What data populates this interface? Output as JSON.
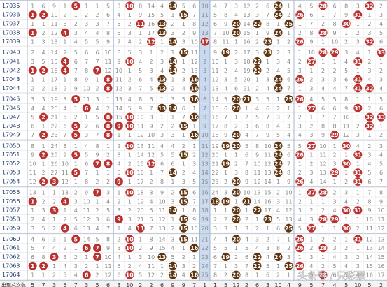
{
  "periods": [
    "17035",
    "17036",
    "17037",
    "17038",
    "17039",
    "17040",
    "17041",
    "17042",
    "17043",
    "17044",
    "17045",
    "17046",
    "17047",
    "17048",
    "17049",
    "17050",
    "17051",
    "17052",
    "17053",
    "17054",
    "17055",
    "17056",
    "17057",
    "17058",
    "17059",
    "17060",
    "17061",
    "17062",
    "17063",
    "17064"
  ],
  "columns": [
    {
      "number": 1,
      "color": "#b8312f",
      "missing": [
        1,
        null,
        1,
        null,
        1,
        2,
        3,
        null,
        1,
        2,
        3,
        4,
        5,
        6,
        7,
        8,
        9,
        10,
        11,
        12,
        13,
        null,
        1,
        2,
        3,
        4,
        5,
        6,
        null,
        1
      ]
    },
    {
      "number": 2,
      "color": "#b8312f",
      "missing": [
        6,
        null,
        1,
        2,
        3,
        4,
        5,
        null,
        1,
        2,
        3,
        4,
        null,
        1,
        null,
        1,
        null,
        1,
        2,
        null,
        1,
        2,
        3,
        4,
        5,
        6,
        7,
        8,
        null,
        1
      ]
    },
    {
      "number": 3,
      "color": "#b8312f",
      "missing": [
        9,
        10,
        11,
        12,
        13,
        14,
        15,
        16,
        17,
        18,
        19,
        20,
        21,
        22,
        23,
        24,
        25,
        26,
        27,
        null,
        1,
        2,
        null,
        1,
        2,
        3,
        4,
        null,
        1,
        2
      ]
    },
    {
      "number": 4,
      "color": "#b8312f",
      "missing": [
        1,
        2,
        3,
        null,
        1,
        2,
        null,
        null,
        1,
        2,
        3,
        4,
        5,
        6,
        7,
        8,
        9,
        10,
        11,
        12,
        13,
        null,
        1,
        2,
        null,
        1,
        2,
        3,
        4,
        5
      ]
    },
    {
      "number": 5,
      "color": "#b8312f",
      "missing": [
        null,
        1,
        2,
        3,
        4,
        5,
        6,
        7,
        8,
        9,
        null,
        1,
        2,
        null,
        null,
        1,
        null,
        1,
        null,
        1,
        2,
        3,
        4,
        5,
        6,
        null,
        1,
        2,
        3,
        4
      ]
    },
    {
      "number": 6,
      "color": "#b8312f",
      "missing": [
        1,
        2,
        3,
        4,
        5,
        6,
        7,
        8,
        9,
        10,
        11,
        null,
        1,
        2,
        3,
        4,
        5,
        6,
        7,
        8,
        9,
        10,
        11,
        12,
        13,
        14,
        null,
        1,
        2,
        null
      ]
    },
    {
      "number": 7,
      "color": "#b8312f",
      "missing": [
        1,
        2,
        3,
        4,
        5,
        6,
        7,
        null,
        1,
        2,
        3,
        4,
        5,
        6,
        7,
        8,
        9,
        null,
        1,
        2,
        null,
        1,
        2,
        3,
        4,
        5,
        null,
        null,
        1,
        2
      ]
    },
    {
      "number": 8,
      "color": "#b8312f",
      "missing": [
        5,
        6,
        7,
        8,
        9,
        10,
        11,
        12,
        null,
        null,
        1,
        2,
        null,
        null,
        null,
        1,
        2,
        null,
        1,
        2,
        3,
        4,
        5,
        6,
        7,
        8,
        9,
        10,
        11,
        12
      ]
    },
    {
      "number": 9,
      "color": "#b8312f",
      "missing": [
        3,
        4,
        5,
        6,
        7,
        8,
        9,
        10,
        11,
        12,
        13,
        14,
        15,
        null,
        1,
        2,
        3,
        4,
        5,
        null,
        1,
        2,
        3,
        null,
        1,
        2,
        3,
        4,
        5,
        6
      ]
    },
    {
      "number": 10,
      "color": "#b8312f",
      "missing": [
        null,
        1,
        2,
        3,
        4,
        5,
        null,
        1,
        2,
        3,
        4,
        5,
        null,
        null,
        1,
        null,
        1,
        2,
        null,
        1,
        null,
        1,
        2,
        3,
        4,
        null,
        null,
        1,
        2,
        null
      ]
    },
    {
      "number": 11,
      "color": "#b8312f",
      "missing": [
        8,
        9,
        null,
        1,
        2,
        3,
        4,
        5,
        6,
        7,
        8,
        9,
        10,
        11,
        12,
        13,
        14,
        15,
        16,
        17,
        18,
        19,
        20,
        21,
        null,
        1,
        2,
        3,
        4,
        5
      ]
    },
    {
      "number": 12,
      "color": "#b8312f",
      "missing": [
        14,
        15,
        16,
        17,
        null,
        1,
        2,
        3,
        4,
        5,
        6,
        7,
        8,
        9,
        10,
        11,
        12,
        null,
        1,
        2,
        3,
        4,
        5,
        6,
        7,
        8,
        9,
        10,
        11,
        12
      ]
    },
    {
      "number": 13,
      "color": "#5e3410",
      "missing": [
        4,
        5,
        null,
        null,
        1,
        2,
        3,
        4,
        null,
        null,
        1,
        null,
        1,
        2,
        3,
        4,
        5,
        6,
        7,
        8,
        9,
        10,
        11,
        12,
        13,
        14,
        15,
        null,
        1,
        2
      ]
    },
    {
      "number": 14,
      "color": "#5e3410",
      "missing": [
        null,
        1,
        2,
        3,
        null,
        1,
        null,
        null,
        1,
        2,
        3,
        null,
        1,
        2,
        3,
        4,
        5,
        6,
        null,
        1,
        2,
        3,
        null,
        1,
        2,
        3,
        4,
        5,
        null,
        null
      ]
    },
    {
      "number": 15,
      "color": "#5e3410",
      "missing": [
        5,
        null,
        1,
        2,
        3,
        null,
        1,
        2,
        3,
        4,
        5,
        6,
        7,
        null,
        1,
        2,
        null,
        1,
        2,
        3,
        null,
        null,
        1,
        null,
        null,
        null,
        1,
        2,
        3,
        4
      ]
    },
    {
      "number": 16,
      "color": "#5e3410",
      "missing": [
        6,
        7,
        8,
        9,
        10,
        11,
        12,
        13,
        null,
        null,
        null,
        1,
        null,
        1,
        null,
        1,
        2,
        3,
        4,
        5,
        6,
        7,
        8,
        9,
        10,
        11,
        null,
        1,
        2,
        null
      ]
    },
    {
      "number": 17,
      "color": "#b8312f",
      "missing": [
        10,
        11,
        12,
        13,
        null,
        1,
        2,
        3,
        4,
        5,
        6,
        7,
        8,
        9,
        10,
        11,
        12,
        13,
        14,
        15,
        16,
        17,
        18,
        19,
        20,
        21,
        22,
        23,
        24,
        25
      ]
    },
    {
      "number": 18,
      "color": "#5e3410",
      "missing": [
        4,
        5,
        6,
        7,
        8,
        9,
        10,
        11,
        12,
        13,
        14,
        15,
        16,
        17,
        18,
        19,
        20,
        21,
        22,
        23,
        24,
        null,
        1,
        2,
        3,
        4,
        5,
        6,
        7,
        8
      ]
    },
    {
      "number": 19,
      "color": "#5e3410",
      "missing": [
        7,
        8,
        9,
        10,
        11,
        null,
        1,
        2,
        3,
        4,
        5,
        6,
        7,
        8,
        9,
        null,
        1,
        null,
        1,
        2,
        3,
        null,
        1,
        2,
        3,
        4,
        5,
        null,
        1,
        2
      ]
    },
    {
      "number": 20,
      "color": "#5e3410",
      "missing": [
        3,
        4,
        null,
        null,
        1,
        2,
        3,
        4,
        5,
        6,
        null,
        null,
        1,
        2,
        null,
        null,
        1,
        2,
        3,
        null,
        null,
        1,
        null,
        null,
        1,
        null,
        1,
        2,
        3,
        null
      ]
    },
    {
      "number": 21,
      "color": "#5e3410",
      "missing": [
        12,
        13,
        14,
        15,
        16,
        17,
        18,
        19,
        20,
        21,
        null,
        1,
        2,
        3,
        4,
        5,
        6,
        7,
        8,
        9,
        10,
        null,
        1,
        2,
        3,
        4,
        5,
        6,
        7,
        8
      ]
    },
    {
      "number": 22,
      "color": "#5e3410",
      "missing": [
        2,
        3,
        null,
        1,
        2,
        3,
        null,
        null,
        1,
        2,
        3,
        4,
        5,
        6,
        7,
        8,
        9,
        10,
        11,
        12,
        13,
        14,
        null,
        1,
        2,
        3,
        4,
        null,
        null,
        1
      ]
    },
    {
      "number": 23,
      "color": "#5e3410",
      "missing": [
        6,
        7,
        8,
        9,
        null,
        null,
        1,
        2,
        3,
        4,
        5,
        6,
        7,
        8,
        9,
        10,
        11,
        12,
        13,
        14,
        15,
        16,
        17,
        null,
        1,
        2,
        3,
        4,
        5,
        6
      ]
    },
    {
      "number": 24,
      "color": "#5e3410",
      "missing": [
        null,
        null,
        1,
        null,
        1,
        2,
        3,
        4,
        null,
        null,
        1,
        2,
        3,
        4,
        5,
        null,
        null,
        null,
        null,
        1,
        2,
        3,
        4,
        5,
        6,
        7,
        8,
        null,
        1,
        2
      ]
    },
    {
      "number": 25,
      "color": "#5e3410",
      "missing": [
        1,
        2,
        null,
        1,
        2,
        3,
        4,
        5,
        6,
        7,
        null,
        1,
        2,
        3,
        4,
        5,
        6,
        7,
        8,
        9,
        10,
        11,
        12,
        13,
        null,
        1,
        2,
        3,
        null,
        1
      ]
    },
    {
      "number": 26,
      "color": "#b8312f",
      "missing": [
        4,
        null,
        1,
        2,
        null,
        1,
        2,
        3,
        null,
        1,
        null,
        1,
        2,
        3,
        4,
        5,
        null,
        1,
        2,
        null,
        1,
        2,
        3,
        4,
        5,
        null,
        null,
        1,
        null,
        1
      ]
    },
    {
      "number": 27,
      "color": "#b8312f",
      "missing": [
        5,
        6,
        7,
        8,
        9,
        10,
        null,
        1,
        2,
        3,
        4,
        null,
        1,
        2,
        3,
        null,
        1,
        2,
        3,
        4,
        null,
        1,
        2,
        3,
        null,
        1,
        2,
        3,
        4,
        5
      ]
    },
    {
      "number": 28,
      "color": "#b8312f",
      "missing": [
        null,
        1,
        2,
        null,
        1,
        null,
        1,
        2,
        3,
        4,
        5,
        6,
        7,
        8,
        9,
        10,
        11,
        12,
        13,
        14,
        null,
        1,
        2,
        null,
        1,
        2,
        null,
        1,
        2,
        null
      ]
    },
    {
      "number": 29,
      "color": "#b8312f",
      "missing": [
        6,
        7,
        8,
        9,
        10,
        null,
        1,
        2,
        3,
        4,
        5,
        6,
        7,
        8,
        null,
        1,
        2,
        3,
        null,
        1,
        2,
        3,
        4,
        null,
        1,
        2,
        3,
        4,
        5,
        6
      ]
    },
    {
      "number": 30,
      "color": "#b8312f",
      "missing": [
        8,
        9,
        null,
        1,
        2,
        3,
        4,
        5,
        6,
        7,
        8,
        9,
        10,
        11,
        12,
        null,
        1,
        null,
        1,
        2,
        3,
        4,
        null,
        1,
        null,
        1,
        2,
        3,
        4,
        5
      ]
    },
    {
      "number": 31,
      "color": "#b8312f",
      "missing": [
        3,
        null,
        1,
        2,
        3,
        4,
        null,
        1,
        null,
        null,
        1,
        null,
        1,
        2,
        3,
        4,
        null,
        1,
        null,
        null,
        1,
        2,
        null,
        1,
        2,
        null,
        1,
        2,
        3,
        4
      ]
    },
    {
      "number": 32,
      "color": "#b8312f",
      "missing": [
        null,
        1,
        2,
        3,
        null,
        1,
        2,
        3,
        4,
        null,
        1,
        2,
        null,
        null,
        1,
        2,
        3,
        4,
        5,
        6,
        7,
        8,
        9,
        10,
        11,
        12,
        13,
        14,
        15,
        16
      ]
    },
    {
      "number": 33,
      "color": "#b8312f",
      "missing": [
        2,
        3,
        4,
        5,
        6,
        null,
        1,
        2,
        3,
        4,
        5,
        6,
        null,
        1,
        2,
        3,
        4,
        5,
        6,
        7,
        8,
        9,
        10,
        11,
        12,
        13,
        14,
        15,
        16,
        17
      ]
    }
  ],
  "footer": {
    "label": "出现总次数",
    "totals": [
      5,
      7,
      3,
      5,
      7,
      3,
      5,
      6,
      3,
      10,
      2,
      2,
      6,
      9,
      9,
      7,
      1,
      1,
      5,
      12,
      2,
      6,
      3,
      10,
      4,
      9,
      5,
      7,
      4,
      5,
      10,
      5,
      2
    ]
  },
  "watermark": "头条号 / 只彩票"
}
